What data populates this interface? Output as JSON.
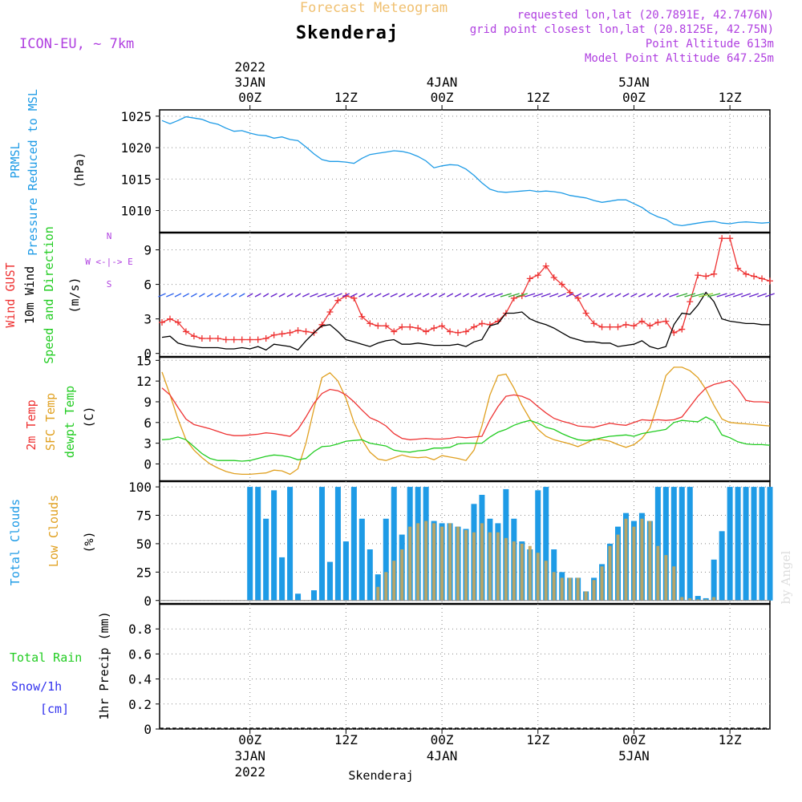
{
  "header": {
    "title_top": "Forecast Meteogram",
    "location": "Skenderaj",
    "model": "ICON-EU, ~ 7km",
    "requested": "requested lon,lat (20.7891E, 42.7476N)",
    "gridpoint": "grid point closest lon,lat (20.8125E, 42.75N)",
    "point_alt": "Point Altitude 613m",
    "model_alt": "Model Point Altitude 647.25m",
    "watermark": "by Angel",
    "footer": "Skenderaj"
  },
  "colors": {
    "pressure": "#1e9be6",
    "gust": "#ee3333",
    "wind": "#000000",
    "temp2m": "#ee3333",
    "sfc": "#e0a020",
    "dewpt": "#22cc22",
    "total_clouds": "#1e9be6",
    "low_clouds": "#c8a65a",
    "rain": "#22cc22",
    "snow": "#3333ee",
    "meta": "#b040e0",
    "title": "#f0c070"
  },
  "time_axis": {
    "top": [
      {
        "hour": 0,
        "lines": [
          "2022",
          "3JAN",
          "00Z"
        ]
      },
      {
        "hour": 12,
        "lines": [
          "12Z"
        ]
      },
      {
        "hour": 24,
        "lines": [
          "4JAN",
          "00Z"
        ]
      },
      {
        "hour": 36,
        "lines": [
          "12Z"
        ]
      },
      {
        "hour": 48,
        "lines": [
          "5JAN",
          "00Z"
        ]
      },
      {
        "hour": 60,
        "lines": [
          "12Z"
        ]
      }
    ],
    "bottom": [
      {
        "hour": 0,
        "lines": [
          "00Z",
          "3JAN",
          "2022"
        ]
      },
      {
        "hour": 12,
        "lines": [
          "12Z"
        ]
      },
      {
        "hour": 24,
        "lines": [
          "00Z",
          "4JAN"
        ]
      },
      {
        "hour": 36,
        "lines": [
          "12Z"
        ]
      },
      {
        "hour": 48,
        "lines": [
          "00Z",
          "5JAN"
        ]
      },
      {
        "hour": 60,
        "lines": [
          "12Z"
        ]
      }
    ]
  },
  "chart_data": [
    {
      "type": "line",
      "id": "pressure",
      "labels": [
        "PRMSL",
        "Pressure Reduced to MSL"
      ],
      "ylabel": "(hPa)",
      "ylim": [
        1006.5,
        1026
      ],
      "yticks": [
        1010,
        1015,
        1020,
        1025
      ],
      "x": [
        -11,
        -10,
        -9,
        -8,
        -7,
        -6,
        -5,
        -4,
        -3,
        -2,
        -1,
        0,
        1,
        2,
        3,
        4,
        5,
        6,
        7,
        8,
        9,
        10,
        11,
        12,
        13,
        14,
        15,
        16,
        17,
        18,
        19,
        20,
        21,
        22,
        23,
        24,
        25,
        26,
        27,
        28,
        29,
        30,
        31,
        32,
        33,
        34,
        35,
        36,
        37,
        38,
        39,
        40,
        41,
        42,
        43,
        44,
        45,
        46,
        47,
        48,
        49,
        50,
        51,
        52,
        53,
        54,
        55,
        56,
        57,
        58,
        59,
        60,
        61,
        62,
        63,
        64,
        65
      ],
      "series": [
        {
          "name": "PRMSL",
          "values": [
            1024.3,
            1023.8,
            1024.3,
            1024.9,
            1024.7,
            1024.5,
            1024.0,
            1023.7,
            1023.1,
            1022.6,
            1022.7,
            1022.3,
            1022.0,
            1021.9,
            1021.5,
            1021.7,
            1021.3,
            1021.1,
            1020.1,
            1019.0,
            1018.1,
            1017.8,
            1017.8,
            1017.7,
            1017.5,
            1018.3,
            1018.9,
            1019.1,
            1019.3,
            1019.5,
            1019.4,
            1019.1,
            1018.6,
            1017.9,
            1016.8,
            1017.1,
            1017.3,
            1017.2,
            1016.6,
            1015.6,
            1014.4,
            1013.4,
            1013.0,
            1012.9,
            1013.0,
            1013.1,
            1013.2,
            1013.0,
            1013.1,
            1013.0,
            1012.8,
            1012.4,
            1012.2,
            1012.0,
            1011.6,
            1011.3,
            1011.5,
            1011.7,
            1011.7,
            1011.1,
            1010.5,
            1009.6,
            1009.0,
            1008.6,
            1007.8,
            1007.6,
            1007.8,
            1008.0,
            1008.2,
            1008.3,
            1008.0,
            1007.9,
            1008.1,
            1008.2,
            1008.1,
            1008.0,
            1008.1
          ]
        }
      ]
    },
    {
      "type": "line",
      "id": "wind",
      "labels": [
        "Wind GUST",
        "10m Wind",
        "Speed and Direction"
      ],
      "ylabel": "(m/s)",
      "compass": [
        "N",
        "W <-|-> E",
        "S"
      ],
      "ylim": [
        -0.3,
        10.5
      ],
      "yticks": [
        0,
        3,
        6,
        9
      ],
      "x": [
        -11,
        -10,
        -9,
        -8,
        -7,
        -6,
        -5,
        -4,
        -3,
        -2,
        -1,
        0,
        1,
        2,
        3,
        4,
        5,
        6,
        7,
        8,
        9,
        10,
        11,
        12,
        13,
        14,
        15,
        16,
        17,
        18,
        19,
        20,
        21,
        22,
        23,
        24,
        25,
        26,
        27,
        28,
        29,
        30,
        31,
        32,
        33,
        34,
        35,
        36,
        37,
        38,
        39,
        40,
        41,
        42,
        43,
        44,
        45,
        46,
        47,
        48,
        49,
        50,
        51,
        52,
        53,
        54,
        55,
        56,
        57,
        58,
        59,
        60,
        61,
        62,
        63,
        64,
        65
      ],
      "series": [
        {
          "name": "Wind GUST",
          "values": [
            2.7,
            3.0,
            2.7,
            1.9,
            1.5,
            1.3,
            1.3,
            1.3,
            1.2,
            1.2,
            1.2,
            1.2,
            1.2,
            1.3,
            1.6,
            1.7,
            1.8,
            2.0,
            1.9,
            1.8,
            2.5,
            3.6,
            4.6,
            5.0,
            4.8,
            3.2,
            2.6,
            2.4,
            2.4,
            1.9,
            2.3,
            2.3,
            2.2,
            1.9,
            2.2,
            2.4,
            1.9,
            1.8,
            1.9,
            2.3,
            2.6,
            2.5,
            2.8,
            3.5,
            4.8,
            5.0,
            6.5,
            6.8,
            7.6,
            6.6,
            6.0,
            5.3,
            4.8,
            3.5,
            2.6,
            2.3,
            2.3,
            2.3,
            2.5,
            2.4,
            2.8,
            2.4,
            2.7,
            2.8,
            1.8,
            2.1,
            4.5,
            6.8,
            6.7,
            6.9,
            10.0,
            10.0,
            7.4,
            6.9,
            6.7,
            6.5,
            6.3
          ]
        },
        {
          "name": "10m Wind",
          "values": [
            1.4,
            1.5,
            0.9,
            0.7,
            0.6,
            0.5,
            0.5,
            0.5,
            0.4,
            0.4,
            0.5,
            0.4,
            0.6,
            0.3,
            0.8,
            0.7,
            0.6,
            0.3,
            1.1,
            1.8,
            2.4,
            2.5,
            1.9,
            1.2,
            1.0,
            0.8,
            0.6,
            0.9,
            1.1,
            1.2,
            0.8,
            0.8,
            0.9,
            0.8,
            0.7,
            0.7,
            0.7,
            0.8,
            0.6,
            1.0,
            1.2,
            2.4,
            2.6,
            3.5,
            3.5,
            3.6,
            3.0,
            2.7,
            2.5,
            2.2,
            1.8,
            1.4,
            1.2,
            1.0,
            1.0,
            0.9,
            0.9,
            0.6,
            0.7,
            0.8,
            1.1,
            0.6,
            0.4,
            0.6,
            2.5,
            3.5,
            3.4,
            4.2,
            5.3,
            4.5,
            3.0,
            2.8,
            2.7,
            2.6,
            2.6,
            2.5,
            2.5
          ]
        }
      ]
    },
    {
      "type": "line",
      "id": "temperature",
      "labels": [
        "2m Temp",
        "SFC Temp",
        "dewpt Temp"
      ],
      "ylabel": "(C)",
      "ylim": [
        -2.5,
        15.5
      ],
      "yticks": [
        0,
        3,
        6,
        9,
        12,
        15
      ],
      "x": [
        -11,
        -10,
        -9,
        -8,
        -7,
        -6,
        -5,
        -4,
        -3,
        -2,
        -1,
        0,
        1,
        2,
        3,
        4,
        5,
        6,
        7,
        8,
        9,
        10,
        11,
        12,
        13,
        14,
        15,
        16,
        17,
        18,
        19,
        20,
        21,
        22,
        23,
        24,
        25,
        26,
        27,
        28,
        29,
        30,
        31,
        32,
        33,
        34,
        35,
        36,
        37,
        38,
        39,
        40,
        41,
        42,
        43,
        44,
        45,
        46,
        47,
        48,
        49,
        50,
        51,
        52,
        53,
        54,
        55,
        56,
        57,
        58,
        59,
        60,
        61,
        62,
        63,
        64,
        65
      ],
      "series": [
        {
          "name": "2m Temp",
          "values": [
            11.0,
            10.0,
            8.2,
            6.5,
            5.7,
            5.4,
            5.1,
            4.7,
            4.3,
            4.1,
            4.1,
            4.2,
            4.3,
            4.5,
            4.4,
            4.2,
            4.0,
            5.0,
            6.8,
            8.8,
            10.2,
            10.8,
            10.6,
            10.0,
            9.0,
            7.8,
            6.7,
            6.2,
            5.5,
            4.4,
            3.7,
            3.5,
            3.6,
            3.7,
            3.6,
            3.6,
            3.7,
            3.9,
            3.8,
            3.9,
            4.0,
            6.4,
            8.3,
            9.8,
            10.0,
            9.8,
            9.3,
            8.3,
            7.4,
            6.6,
            6.2,
            5.9,
            5.5,
            5.4,
            5.3,
            5.6,
            5.9,
            5.7,
            5.6,
            6.0,
            6.4,
            6.3,
            6.4,
            6.3,
            6.4,
            6.8,
            8.3,
            9.8,
            11.0,
            11.5,
            11.8,
            12.1,
            10.9,
            9.2,
            9.0,
            9.0,
            8.9
          ]
        },
        {
          "name": "SFC Temp",
          "values": [
            13.3,
            10.0,
            6.5,
            3.5,
            2.0,
            0.9,
            0.0,
            -0.6,
            -1.1,
            -1.4,
            -1.5,
            -1.5,
            -1.4,
            -1.3,
            -0.9,
            -1.0,
            -1.5,
            -0.7,
            3.0,
            8.0,
            12.5,
            13.2,
            12.0,
            9.5,
            6.0,
            3.5,
            1.7,
            0.7,
            0.5,
            0.9,
            1.3,
            1.0,
            0.9,
            1.0,
            0.6,
            1.2,
            1.0,
            0.8,
            0.5,
            2.0,
            5.5,
            10.0,
            12.8,
            13.0,
            11.0,
            8.5,
            6.5,
            5.0,
            4.0,
            3.5,
            3.2,
            2.9,
            2.5,
            3.0,
            3.6,
            3.5,
            3.3,
            2.8,
            2.4,
            2.8,
            3.7,
            5.2,
            8.8,
            12.8,
            14.0,
            14.0,
            13.5,
            12.5,
            10.8,
            8.5,
            6.5,
            6.0,
            5.9,
            5.8,
            5.7,
            5.6,
            5.5
          ]
        },
        {
          "name": "dewpt Temp",
          "values": [
            3.5,
            3.6,
            3.9,
            3.5,
            2.5,
            1.5,
            0.8,
            0.5,
            0.5,
            0.5,
            0.4,
            0.5,
            0.8,
            1.1,
            1.3,
            1.2,
            1.0,
            0.6,
            0.8,
            1.8,
            2.5,
            2.6,
            2.9,
            3.3,
            3.4,
            3.5,
            3.0,
            2.8,
            2.6,
            2.0,
            1.8,
            1.7,
            1.9,
            2.0,
            2.3,
            2.3,
            2.4,
            2.9,
            3.0,
            3.0,
            3.0,
            3.9,
            4.6,
            5.0,
            5.6,
            6.0,
            6.3,
            5.9,
            5.3,
            5.0,
            4.4,
            3.9,
            3.5,
            3.4,
            3.5,
            3.8,
            4.0,
            4.1,
            4.2,
            4.0,
            4.4,
            4.6,
            4.8,
            5.0,
            6.0,
            6.3,
            6.2,
            6.1,
            6.8,
            6.2,
            4.2,
            3.8,
            3.2,
            2.9,
            2.8,
            2.8,
            2.7
          ]
        }
      ]
    },
    {
      "type": "bar",
      "id": "clouds",
      "labels": [
        "Total Clouds",
        "Low Clouds"
      ],
      "ylabel": "(%)",
      "ylim": [
        -3,
        105
      ],
      "yticks": [
        0,
        25,
        50,
        75,
        100
      ],
      "x": [
        -11,
        -10,
        -9,
        -8,
        -7,
        -6,
        -5,
        -4,
        -3,
        -2,
        -1,
        0,
        1,
        2,
        3,
        4,
        5,
        6,
        7,
        8,
        9,
        10,
        11,
        12,
        13,
        14,
        15,
        16,
        17,
        18,
        19,
        20,
        21,
        22,
        23,
        24,
        25,
        26,
        27,
        28,
        29,
        30,
        31,
        32,
        33,
        34,
        35,
        36,
        37,
        38,
        39,
        40,
        41,
        42,
        43,
        44,
        45,
        46,
        47,
        48,
        49,
        50,
        51,
        52,
        53,
        54,
        55,
        56,
        57,
        58,
        59,
        60,
        61,
        62,
        63,
        64,
        65
      ],
      "series": [
        {
          "name": "Total Clouds",
          "values": [
            0,
            0,
            0,
            0,
            0,
            0,
            0,
            0,
            0,
            0,
            0,
            100,
            100,
            72,
            97,
            38,
            100,
            6,
            0,
            9,
            100,
            34,
            100,
            52,
            100,
            72,
            45,
            23,
            72,
            100,
            58,
            100,
            100,
            100,
            70,
            68,
            68,
            65,
            63,
            85,
            93,
            72,
            68,
            98,
            72,
            52,
            45,
            97,
            100,
            45,
            25,
            20,
            20,
            8,
            20,
            32,
            50,
            65,
            77,
            70,
            77,
            70,
            100,
            100,
            100,
            100,
            100,
            4,
            2,
            36,
            61,
            100,
            100,
            100,
            100,
            100,
            100
          ]
        },
        {
          "name": "Low Clouds",
          "values": [
            0,
            0,
            0,
            0,
            0,
            0,
            0,
            0,
            0,
            0,
            0,
            0,
            0,
            0,
            0,
            0,
            0,
            0,
            0,
            0,
            0,
            0,
            0,
            0,
            0,
            0,
            0,
            12,
            25,
            35,
            45,
            65,
            68,
            70,
            68,
            65,
            68,
            65,
            62,
            60,
            68,
            60,
            60,
            55,
            52,
            50,
            48,
            42,
            35,
            25,
            20,
            20,
            20,
            8,
            18,
            30,
            48,
            58,
            72,
            65,
            72,
            70,
            48,
            40,
            30,
            3,
            2,
            1,
            1,
            3,
            0,
            0,
            0,
            0,
            0,
            0,
            0
          ]
        }
      ]
    },
    {
      "type": "line",
      "id": "precip",
      "labels": [
        "Total  Rain",
        "Snow/1h",
        "[cm]"
      ],
      "ylabel": "1hr Precip (mm)",
      "ylim": [
        0,
        1.0
      ],
      "yticks": [
        0,
        0.2,
        0.4,
        0.6,
        0.8
      ],
      "ytick_labels": [
        "0",
        "0.2",
        "0.4",
        "0.6",
        "0.8"
      ],
      "x": [
        -11,
        65
      ],
      "series": [
        {
          "name": "Total Rain",
          "values": [
            0,
            0
          ]
        }
      ]
    }
  ]
}
